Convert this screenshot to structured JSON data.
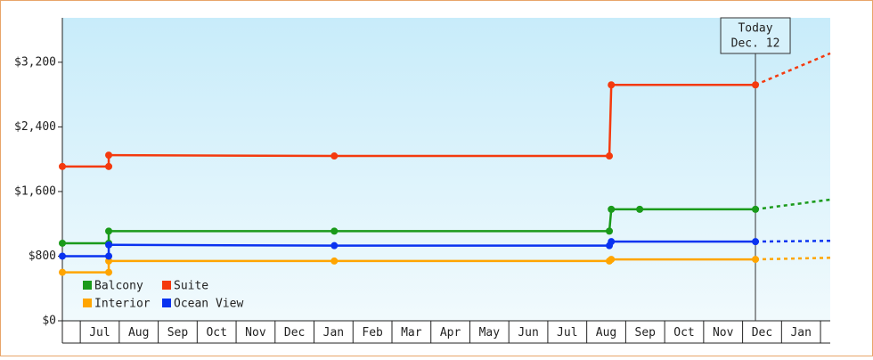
{
  "chart_data": {
    "type": "line",
    "ylim": [
      0,
      3750
    ],
    "yticks": [
      {
        "value": 0,
        "label": "$0"
      },
      {
        "value": 800,
        "label": "$800"
      },
      {
        "value": 1600,
        "label": "$1,600"
      },
      {
        "value": 2400,
        "label": "$2,400"
      },
      {
        "value": 3200,
        "label": "$3,200"
      }
    ],
    "xlim": [
      -0.46,
      19.25
    ],
    "xticks": [
      {
        "value": 0.5,
        "label": "Jul"
      },
      {
        "value": 1.5,
        "label": "Aug"
      },
      {
        "value": 2.5,
        "label": "Sep"
      },
      {
        "value": 3.5,
        "label": "Oct"
      },
      {
        "value": 4.5,
        "label": "Nov"
      },
      {
        "value": 5.5,
        "label": "Dec"
      },
      {
        "value": 6.5,
        "label": "Jan"
      },
      {
        "value": 7.5,
        "label": "Feb"
      },
      {
        "value": 8.5,
        "label": "Mar"
      },
      {
        "value": 9.5,
        "label": "Apr"
      },
      {
        "value": 10.5,
        "label": "May"
      },
      {
        "value": 11.5,
        "label": "Jun"
      },
      {
        "value": 12.5,
        "label": "Jul"
      },
      {
        "value": 13.5,
        "label": "Aug"
      },
      {
        "value": 14.5,
        "label": "Sep"
      },
      {
        "value": 15.5,
        "label": "Oct"
      },
      {
        "value": 16.5,
        "label": "Nov"
      },
      {
        "value": 17.5,
        "label": "Dec"
      },
      {
        "value": 18.5,
        "label": "Jan"
      }
    ],
    "today": {
      "x": 17.33,
      "label": "Today",
      "date": "Dec. 12"
    },
    "series": [
      {
        "name": "Balcony",
        "color": "#1a9a1a",
        "x": [
          -0.46,
          0.73,
          0.73,
          6.52,
          13.58,
          13.63,
          14.36,
          17.33
        ],
        "values": [
          960,
          960,
          1110,
          1110,
          1110,
          1380,
          1380,
          1380
        ],
        "forecast_x": 19.25,
        "forecast_value": 1500
      },
      {
        "name": "Suite",
        "color": "#f43a0e",
        "x": [
          -0.46,
          0.73,
          0.73,
          6.52,
          13.58,
          13.63,
          17.33
        ],
        "values": [
          1910,
          1910,
          2050,
          2040,
          2040,
          2920,
          2920
        ],
        "forecast_x": 19.25,
        "forecast_value": 3310
      },
      {
        "name": "Interior",
        "color": "#ffa500",
        "x": [
          -0.46,
          0.73,
          0.73,
          6.52,
          13.58,
          13.63,
          17.33
        ],
        "values": [
          600,
          600,
          740,
          740,
          740,
          760,
          760
        ],
        "forecast_x": 19.25,
        "forecast_value": 780
      },
      {
        "name": "Ocean View",
        "color": "#0a33f0",
        "x": [
          -0.46,
          0.73,
          0.73,
          6.52,
          13.58,
          13.63,
          17.33
        ],
        "values": [
          800,
          800,
          940,
          930,
          930,
          980,
          980
        ],
        "forecast_x": 19.25,
        "forecast_value": 990
      }
    ]
  }
}
